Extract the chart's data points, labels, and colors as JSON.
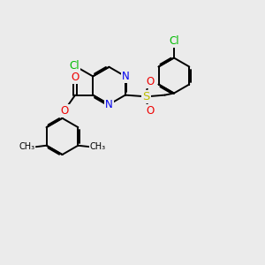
{
  "bg": "#ebebeb",
  "bond_color": "#000000",
  "bw": 1.4,
  "atom_colors": {
    "Cl": "#00bb00",
    "N": "#0000ee",
    "O": "#ee0000",
    "S": "#bbbb00",
    "C": "#000000"
  },
  "dbo": 0.055
}
